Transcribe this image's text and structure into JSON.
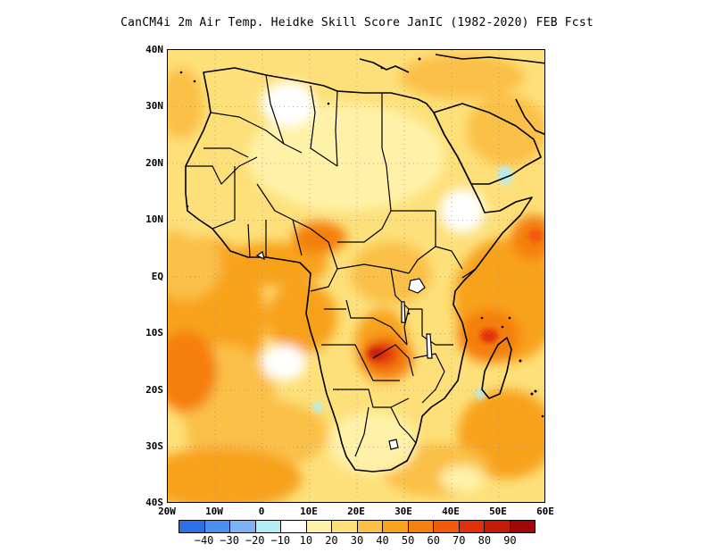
{
  "title": "CanCM4i  2m Air Temp. Heidke Skill Score JanIC (1982-2020) FEB Fcst",
  "map": {
    "lon_range": [
      -20,
      60
    ],
    "lat_range": [
      -40,
      40
    ],
    "lat_labels": [
      "40N",
      "30N",
      "20N",
      "10N",
      "EQ",
      "10S",
      "20S",
      "30S",
      "40S"
    ],
    "lon_labels": [
      "20W",
      "10W",
      "0",
      "10E",
      "20E",
      "30E",
      "40E",
      "50E",
      "60E"
    ],
    "grid_lines": "dotted",
    "features": [
      "coastlines",
      "country-borders",
      "lakes"
    ]
  },
  "colorbar": {
    "colors": [
      "#2f6fe6",
      "#4a90ee",
      "#7db3f3",
      "#b3ecf5",
      "#ffffff",
      "#fff2a8",
      "#fde07a",
      "#fbc046",
      "#f8a21e",
      "#f57f10",
      "#f25a0c",
      "#e03008",
      "#c41a08",
      "#a00808"
    ],
    "labels": [
      "-40",
      "-30",
      "-20",
      "-10",
      "10",
      "20",
      "30",
      "40",
      "50",
      "60",
      "70",
      "80",
      "90"
    ]
  }
}
